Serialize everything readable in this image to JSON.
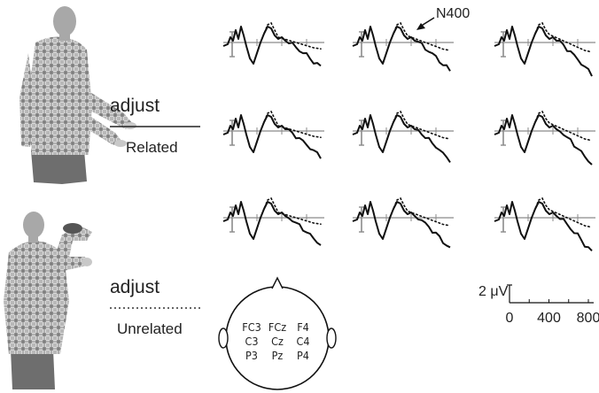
{
  "conditions": {
    "related": {
      "word": "adjust",
      "label": "Related",
      "line_style": "solid"
    },
    "unrelated": {
      "word": "adjust",
      "label": "Unrelated",
      "line_style": "dotted"
    }
  },
  "photos": [
    {
      "name": "signer-related"
    },
    {
      "name": "signer-unrelated"
    }
  ],
  "annotation": {
    "text": "N400"
  },
  "electrode_map": {
    "rows": [
      [
        "FC3",
        "FCz",
        "F4"
      ],
      [
        "C3",
        "Cz",
        "C4"
      ],
      [
        "P3",
        "Pz",
        "P4"
      ]
    ]
  },
  "scale_bar": {
    "amplitude_label": "2 μV",
    "time_ticks": [
      "0",
      "400",
      "800"
    ]
  },
  "waveform_grid": {
    "rows": 3,
    "cols": 3,
    "colors": {
      "trace": "#111111",
      "axis": "#8a8a8a"
    }
  }
}
